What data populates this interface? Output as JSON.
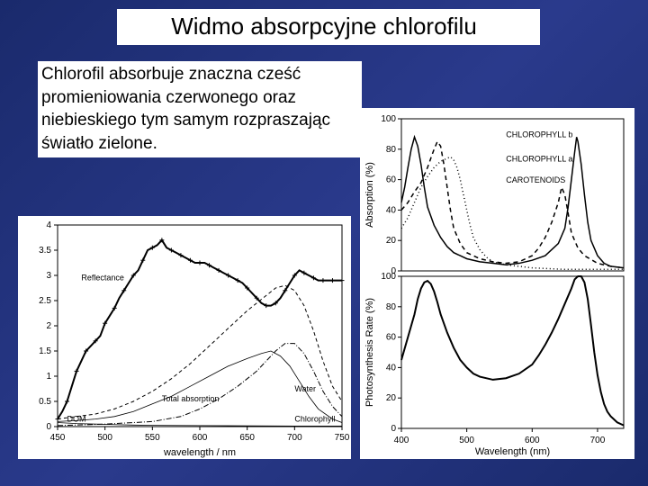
{
  "title": "Widmo absorpcyjne chlorofilu",
  "body_text": "Chlorofil absorbuje znaczna cześć promieniowania czerwonego oraz niebieskiego tym samym rozpraszając światło zielone.",
  "left_chart": {
    "type": "line",
    "background_color": "#ffffff",
    "xlabel": "wavelength / nm",
    "xlim": [
      450,
      750
    ],
    "xtick_step": 50,
    "ylim": [
      0,
      4
    ],
    "ytick_step": 0.5,
    "yticks": [
      0,
      0.5,
      1,
      1.5,
      2,
      2.5,
      3,
      3.5,
      4
    ],
    "ytick_labels": [
      "0",
      "0.5",
      "1",
      "1.5",
      "2",
      "2.5",
      "3",
      "3.5",
      "4"
    ],
    "label_fontsize": 10,
    "series": [
      {
        "name": "Reflectance",
        "style": "solid-thick-markers",
        "stroke_width": 2,
        "marker": "+",
        "label_xy": [
          475,
          2.9
        ],
        "data": [
          [
            450,
            0.15
          ],
          [
            455,
            0.3
          ],
          [
            460,
            0.5
          ],
          [
            465,
            0.8
          ],
          [
            470,
            1.1
          ],
          [
            475,
            1.3
          ],
          [
            480,
            1.5
          ],
          [
            485,
            1.6
          ],
          [
            490,
            1.7
          ],
          [
            495,
            1.8
          ],
          [
            500,
            2.05
          ],
          [
            505,
            2.2
          ],
          [
            510,
            2.35
          ],
          [
            515,
            2.55
          ],
          [
            520,
            2.7
          ],
          [
            525,
            2.85
          ],
          [
            530,
            3.0
          ],
          [
            535,
            3.1
          ],
          [
            540,
            3.3
          ],
          [
            545,
            3.5
          ],
          [
            550,
            3.55
          ],
          [
            555,
            3.6
          ],
          [
            560,
            3.7
          ],
          [
            565,
            3.55
          ],
          [
            570,
            3.5
          ],
          [
            575,
            3.45
          ],
          [
            580,
            3.4
          ],
          [
            585,
            3.35
          ],
          [
            590,
            3.3
          ],
          [
            595,
            3.25
          ],
          [
            600,
            3.25
          ],
          [
            605,
            3.25
          ],
          [
            610,
            3.2
          ],
          [
            615,
            3.15
          ],
          [
            620,
            3.1
          ],
          [
            625,
            3.05
          ],
          [
            630,
            3.0
          ],
          [
            635,
            2.95
          ],
          [
            640,
            2.9
          ],
          [
            645,
            2.85
          ],
          [
            650,
            2.75
          ],
          [
            655,
            2.65
          ],
          [
            660,
            2.55
          ],
          [
            665,
            2.45
          ],
          [
            670,
            2.4
          ],
          [
            675,
            2.4
          ],
          [
            680,
            2.45
          ],
          [
            685,
            2.55
          ],
          [
            690,
            2.7
          ],
          [
            695,
            2.85
          ],
          [
            700,
            3.0
          ],
          [
            705,
            3.1
          ],
          [
            710,
            3.05
          ],
          [
            715,
            3.0
          ],
          [
            720,
            2.95
          ],
          [
            725,
            2.9
          ],
          [
            730,
            2.9
          ],
          [
            735,
            2.9
          ],
          [
            740,
            2.9
          ],
          [
            745,
            2.9
          ],
          [
            750,
            2.9
          ]
        ]
      },
      {
        "name": "Total absorption",
        "style": "dashed",
        "stroke_width": 1,
        "dash": "4,3",
        "label_xy": [
          560,
          0.5
        ],
        "data": [
          [
            450,
            0.15
          ],
          [
            470,
            0.2
          ],
          [
            490,
            0.25
          ],
          [
            510,
            0.35
          ],
          [
            530,
            0.5
          ],
          [
            550,
            0.7
          ],
          [
            570,
            0.95
          ],
          [
            590,
            1.25
          ],
          [
            610,
            1.6
          ],
          [
            630,
            1.95
          ],
          [
            650,
            2.3
          ],
          [
            670,
            2.6
          ],
          [
            680,
            2.75
          ],
          [
            690,
            2.8
          ],
          [
            700,
            2.7
          ],
          [
            710,
            2.4
          ],
          [
            720,
            1.9
          ],
          [
            730,
            1.3
          ],
          [
            740,
            0.8
          ],
          [
            750,
            0.5
          ]
        ]
      },
      {
        "name": "Water",
        "style": "dash-dot",
        "stroke_width": 1,
        "dash": "6,2,1,2",
        "label_xy": [
          700,
          0.7
        ],
        "data": [
          [
            450,
            0.02
          ],
          [
            500,
            0.05
          ],
          [
            550,
            0.1
          ],
          [
            580,
            0.2
          ],
          [
            600,
            0.35
          ],
          [
            620,
            0.55
          ],
          [
            640,
            0.8
          ],
          [
            660,
            1.1
          ],
          [
            670,
            1.3
          ],
          [
            680,
            1.5
          ],
          [
            690,
            1.65
          ],
          [
            700,
            1.65
          ],
          [
            710,
            1.45
          ],
          [
            720,
            1.1
          ],
          [
            730,
            0.7
          ],
          [
            740,
            0.4
          ],
          [
            750,
            0.2
          ]
        ]
      },
      {
        "name": "Chlorophyll",
        "style": "thin",
        "stroke_width": 0.8,
        "label_xy": [
          700,
          0.1
        ],
        "data": [
          [
            450,
            0.1
          ],
          [
            470,
            0.12
          ],
          [
            490,
            0.15
          ],
          [
            510,
            0.2
          ],
          [
            530,
            0.3
          ],
          [
            550,
            0.45
          ],
          [
            570,
            0.6
          ],
          [
            590,
            0.8
          ],
          [
            610,
            1.0
          ],
          [
            630,
            1.2
          ],
          [
            650,
            1.35
          ],
          [
            665,
            1.45
          ],
          [
            675,
            1.5
          ],
          [
            685,
            1.4
          ],
          [
            695,
            1.2
          ],
          [
            705,
            0.9
          ],
          [
            715,
            0.6
          ],
          [
            725,
            0.35
          ],
          [
            740,
            0.15
          ],
          [
            750,
            0.08
          ]
        ]
      },
      {
        "name": "DOM",
        "style": "thin",
        "stroke_width": 0.8,
        "label_xy": [
          460,
          0.1
        ],
        "data": [
          [
            450,
            0.08
          ],
          [
            470,
            0.06
          ],
          [
            490,
            0.05
          ],
          [
            510,
            0.04
          ],
          [
            530,
            0.03
          ],
          [
            550,
            0.025
          ],
          [
            600,
            0.02
          ],
          [
            650,
            0.015
          ],
          [
            700,
            0.01
          ],
          [
            750,
            0.01
          ]
        ]
      }
    ]
  },
  "right_chart": {
    "type": "stacked-line",
    "background_color": "#ffffff",
    "xlabel": "Wavelength (nm)",
    "xlim": [
      400,
      740
    ],
    "xtick_step": 100,
    "xticks": [
      400,
      500,
      600,
      700
    ],
    "label_fontsize": 11,
    "top_panel": {
      "ylabel": "Absorption (%)",
      "ylim": [
        0,
        100
      ],
      "yticks": [
        0,
        20,
        40,
        60,
        80,
        100
      ],
      "series": [
        {
          "name": "CHLOROPHYLL b",
          "style": "dashed",
          "stroke_width": 1.5,
          "dash": "5,4",
          "label_xy": [
            560,
            88
          ],
          "data": [
            [
              400,
              40
            ],
            [
              410,
              45
            ],
            [
              420,
              52
            ],
            [
              430,
              58
            ],
            [
              440,
              68
            ],
            [
              450,
              80
            ],
            [
              455,
              85
            ],
            [
              460,
              82
            ],
            [
              465,
              70
            ],
            [
              470,
              55
            ],
            [
              475,
              40
            ],
            [
              480,
              28
            ],
            [
              490,
              18
            ],
            [
              500,
              12
            ],
            [
              520,
              8
            ],
            [
              540,
              6
            ],
            [
              560,
              5
            ],
            [
              580,
              6
            ],
            [
              600,
              10
            ],
            [
              610,
              15
            ],
            [
              620,
              22
            ],
            [
              630,
              32
            ],
            [
              640,
              45
            ],
            [
              645,
              55
            ],
            [
              650,
              50
            ],
            [
              655,
              38
            ],
            [
              660,
              25
            ],
            [
              670,
              15
            ],
            [
              680,
              10
            ],
            [
              700,
              5
            ],
            [
              720,
              3
            ],
            [
              740,
              2
            ]
          ]
        },
        {
          "name": "CHLOROPHYLL a",
          "style": "solid",
          "stroke_width": 1.5,
          "label_xy": [
            560,
            72
          ],
          "data": [
            [
              400,
              45
            ],
            [
              405,
              55
            ],
            [
              410,
              68
            ],
            [
              415,
              80
            ],
            [
              420,
              88
            ],
            [
              425,
              82
            ],
            [
              430,
              70
            ],
            [
              435,
              55
            ],
            [
              440,
              42
            ],
            [
              450,
              30
            ],
            [
              460,
              22
            ],
            [
              470,
              16
            ],
            [
              480,
              12
            ],
            [
              490,
              10
            ],
            [
              500,
              8
            ],
            [
              520,
              6
            ],
            [
              540,
              5
            ],
            [
              560,
              4
            ],
            [
              580,
              5
            ],
            [
              600,
              7
            ],
            [
              620,
              10
            ],
            [
              640,
              18
            ],
            [
              650,
              28
            ],
            [
              655,
              42
            ],
            [
              660,
              60
            ],
            [
              665,
              78
            ],
            [
              668,
              88
            ],
            [
              670,
              85
            ],
            [
              675,
              70
            ],
            [
              680,
              50
            ],
            [
              685,
              32
            ],
            [
              690,
              20
            ],
            [
              700,
              10
            ],
            [
              710,
              5
            ],
            [
              720,
              3
            ],
            [
              740,
              2
            ]
          ]
        },
        {
          "name": "CAROTENOIDS",
          "style": "dotted",
          "stroke_width": 1.5,
          "dash": "1,3",
          "label_xy": [
            560,
            58
          ],
          "data": [
            [
              400,
              28
            ],
            [
              410,
              35
            ],
            [
              420,
              45
            ],
            [
              430,
              55
            ],
            [
              440,
              62
            ],
            [
              450,
              68
            ],
            [
              460,
              72
            ],
            [
              470,
              74
            ],
            [
              475,
              75
            ],
            [
              480,
              73
            ],
            [
              485,
              68
            ],
            [
              490,
              60
            ],
            [
              495,
              50
            ],
            [
              500,
              40
            ],
            [
              505,
              30
            ],
            [
              510,
              22
            ],
            [
              520,
              14
            ],
            [
              530,
              9
            ],
            [
              540,
              6
            ],
            [
              560,
              4
            ],
            [
              580,
              3
            ],
            [
              600,
              2
            ],
            [
              650,
              1
            ],
            [
              700,
              1
            ],
            [
              740,
              1
            ]
          ]
        }
      ]
    },
    "bottom_panel": {
      "ylabel": "Photosynthesis Rate (%)",
      "ylim": [
        0,
        100
      ],
      "yticks": [
        0,
        20,
        40,
        60,
        80,
        100
      ],
      "series": [
        {
          "name": "photosynthesis",
          "style": "solid",
          "stroke_width": 2,
          "data": [
            [
              400,
              45
            ],
            [
              410,
              60
            ],
            [
              420,
              75
            ],
            [
              425,
              85
            ],
            [
              430,
              92
            ],
            [
              435,
              96
            ],
            [
              440,
              97
            ],
            [
              445,
              95
            ],
            [
              450,
              90
            ],
            [
              455,
              83
            ],
            [
              460,
              75
            ],
            [
              470,
              63
            ],
            [
              480,
              53
            ],
            [
              490,
              45
            ],
            [
              500,
              40
            ],
            [
              510,
              36
            ],
            [
              520,
              34
            ],
            [
              540,
              32
            ],
            [
              560,
              33
            ],
            [
              580,
              36
            ],
            [
              600,
              42
            ],
            [
              610,
              48
            ],
            [
              620,
              55
            ],
            [
              630,
              63
            ],
            [
              640,
              72
            ],
            [
              650,
              82
            ],
            [
              660,
              92
            ],
            [
              665,
              98
            ],
            [
              670,
              100
            ],
            [
              675,
              100
            ],
            [
              680,
              96
            ],
            [
              685,
              85
            ],
            [
              690,
              68
            ],
            [
              695,
              50
            ],
            [
              700,
              35
            ],
            [
              705,
              24
            ],
            [
              710,
              16
            ],
            [
              715,
              11
            ],
            [
              720,
              8
            ],
            [
              730,
              4
            ],
            [
              740,
              2
            ]
          ]
        }
      ]
    }
  },
  "colors": {
    "background_gradient": [
      "#1a2a6c",
      "#2a3a8c"
    ],
    "text_box_bg": "#ffffff",
    "text_color": "#000000",
    "line_color": "#000000"
  }
}
